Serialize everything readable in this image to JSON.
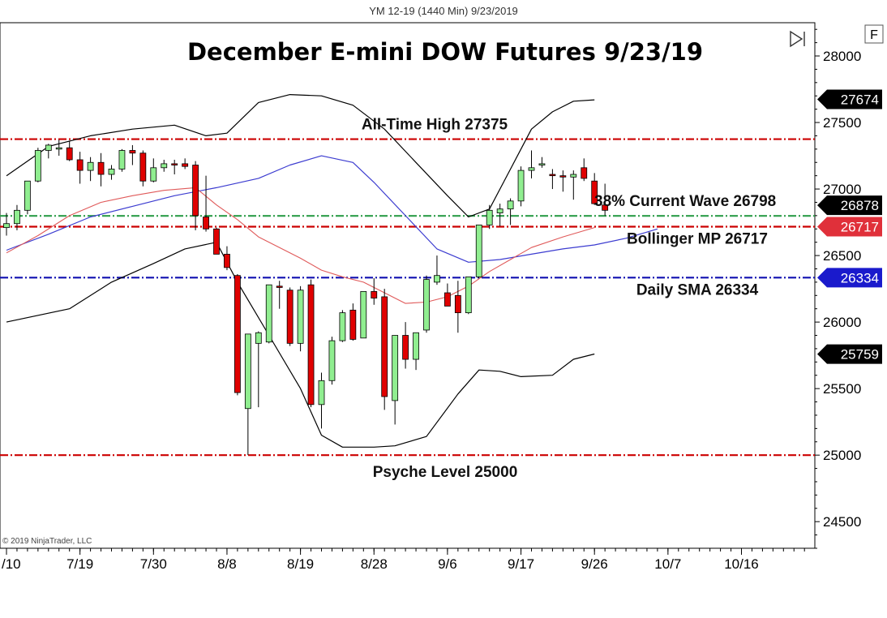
{
  "header": {
    "caption": "YM 12-19 (1440 Min)  9/23/2019"
  },
  "footer": {
    "copyright": "© 2019 NinjaTrader, LLC"
  },
  "panel": {
    "f_label": "F",
    "play_icon": "play-end-icon"
  },
  "colors": {
    "bull": "#90ee90",
    "bear": "#e00000",
    "wick": "#000000",
    "bollinger": "#000000",
    "keltner": "#3c3cd0",
    "ma": "#e05a5a",
    "red_dash": "#cc0000",
    "green_dash": "#2e9e4a",
    "blue_dash": "#1010b0",
    "badge_black": "#000000",
    "badge_red": "#e0303a",
    "badge_blue": "#1a1acc"
  },
  "chart_data": {
    "type": "candlestick",
    "title": "December E-mini DOW Futures 9/23/19",
    "ylim": [
      24300,
      28250
    ],
    "y_ticks": [
      {
        "value": 24500,
        "label": "24500"
      },
      {
        "value": 25000,
        "label": "25000"
      },
      {
        "value": 25500,
        "label": "25500"
      },
      {
        "value": 26000,
        "label": "26000"
      },
      {
        "value": 26500,
        "label": "26500"
      },
      {
        "value": 27000,
        "label": "27000"
      },
      {
        "value": 27500,
        "label": "27500"
      },
      {
        "value": 28000,
        "label": "28000"
      }
    ],
    "x_ticks": [
      {
        "index": 0,
        "label": "/10"
      },
      {
        "index": 7,
        "label": "7/19"
      },
      {
        "index": 14,
        "label": "7/30"
      },
      {
        "index": 21,
        "label": "8/8"
      },
      {
        "index": 28,
        "label": "8/19"
      },
      {
        "index": 35,
        "label": "8/28"
      },
      {
        "index": 42,
        "label": "9/6"
      },
      {
        "index": 49,
        "label": "9/17"
      },
      {
        "index": 56,
        "label": "9/26"
      },
      {
        "index": 63,
        "label": "10/7"
      },
      {
        "index": 70,
        "label": "10/16"
      }
    ],
    "candles": [
      {
        "o": 26710,
        "h": 26820,
        "l": 26650,
        "c": 26740
      },
      {
        "o": 26740,
        "h": 26880,
        "l": 26690,
        "c": 26840
      },
      {
        "o": 26840,
        "h": 27060,
        "l": 26810,
        "c": 27060
      },
      {
        "o": 27060,
        "h": 27310,
        "l": 27050,
        "c": 27290
      },
      {
        "o": 27290,
        "h": 27340,
        "l": 27230,
        "c": 27330
      },
      {
        "o": 27300,
        "h": 27370,
        "l": 27250,
        "c": 27310
      },
      {
        "o": 27310,
        "h": 27360,
        "l": 27210,
        "c": 27220
      },
      {
        "o": 27220,
        "h": 27280,
        "l": 27040,
        "c": 27140
      },
      {
        "o": 27140,
        "h": 27240,
        "l": 27060,
        "c": 27200
      },
      {
        "o": 27200,
        "h": 27270,
        "l": 27020,
        "c": 27110
      },
      {
        "o": 27110,
        "h": 27180,
        "l": 27070,
        "c": 27150
      },
      {
        "o": 27150,
        "h": 27300,
        "l": 27130,
        "c": 27290
      },
      {
        "o": 27290,
        "h": 27330,
        "l": 27180,
        "c": 27270
      },
      {
        "o": 27270,
        "h": 27290,
        "l": 27020,
        "c": 27060
      },
      {
        "o": 27060,
        "h": 27230,
        "l": 27050,
        "c": 27160
      },
      {
        "o": 27160,
        "h": 27220,
        "l": 27130,
        "c": 27190
      },
      {
        "o": 27190,
        "h": 27220,
        "l": 27110,
        "c": 27180
      },
      {
        "o": 27190,
        "h": 27230,
        "l": 27150,
        "c": 27170
      },
      {
        "o": 27180,
        "h": 27210,
        "l": 26690,
        "c": 26800
      },
      {
        "o": 26790,
        "h": 27100,
        "l": 26680,
        "c": 26700
      },
      {
        "o": 26700,
        "h": 26710,
        "l": 26530,
        "c": 26510
      },
      {
        "o": 26510,
        "h": 26570,
        "l": 26390,
        "c": 26410
      },
      {
        "o": 26350,
        "h": 26360,
        "l": 25450,
        "c": 25470
      },
      {
        "o": 25350,
        "h": 25910,
        "l": 25000,
        "c": 25910
      },
      {
        "o": 25840,
        "h": 25930,
        "l": 25360,
        "c": 25920
      },
      {
        "o": 25850,
        "h": 26280,
        "l": 25840,
        "c": 26280
      },
      {
        "o": 26270,
        "h": 26310,
        "l": 26100,
        "c": 26260
      },
      {
        "o": 26240,
        "h": 26260,
        "l": 25820,
        "c": 25840
      },
      {
        "o": 25840,
        "h": 26270,
        "l": 25780,
        "c": 26240
      },
      {
        "o": 26280,
        "h": 26320,
        "l": 25360,
        "c": 25380
      },
      {
        "o": 25380,
        "h": 25620,
        "l": 25200,
        "c": 25560
      },
      {
        "o": 25560,
        "h": 25890,
        "l": 25530,
        "c": 25860
      },
      {
        "o": 25860,
        "h": 26090,
        "l": 25850,
        "c": 26070
      },
      {
        "o": 26090,
        "h": 26140,
        "l": 25860,
        "c": 25870
      },
      {
        "o": 25880,
        "h": 26230,
        "l": 25880,
        "c": 26230
      },
      {
        "o": 26230,
        "h": 26330,
        "l": 26130,
        "c": 26180
      },
      {
        "o": 26190,
        "h": 26250,
        "l": 25340,
        "c": 25440
      },
      {
        "o": 25410,
        "h": 25900,
        "l": 25230,
        "c": 25900
      },
      {
        "o": 25900,
        "h": 26000,
        "l": 25650,
        "c": 25720
      },
      {
        "o": 25720,
        "h": 25920,
        "l": 25640,
        "c": 25920
      },
      {
        "o": 25940,
        "h": 26350,
        "l": 25920,
        "c": 26320
      },
      {
        "o": 26300,
        "h": 26500,
        "l": 26280,
        "c": 26350
      },
      {
        "o": 26220,
        "h": 26290,
        "l": 26140,
        "c": 26120
      },
      {
        "o": 26200,
        "h": 26310,
        "l": 25920,
        "c": 26070
      },
      {
        "o": 26070,
        "h": 26340,
        "l": 26060,
        "c": 26340
      },
      {
        "o": 26340,
        "h": 26730,
        "l": 26330,
        "c": 26730
      },
      {
        "o": 26730,
        "h": 26880,
        "l": 26700,
        "c": 26840
      },
      {
        "o": 26820,
        "h": 26890,
        "l": 26720,
        "c": 26850
      },
      {
        "o": 26850,
        "h": 26930,
        "l": 26730,
        "c": 26910
      },
      {
        "o": 26910,
        "h": 27170,
        "l": 26870,
        "c": 27140
      },
      {
        "o": 27140,
        "h": 27290,
        "l": 27080,
        "c": 27160
      },
      {
        "o": 27180,
        "h": 27240,
        "l": 27160,
        "c": 27190
      },
      {
        "o": 27110,
        "h": 27150,
        "l": 27000,
        "c": 27100
      },
      {
        "o": 27100,
        "h": 27140,
        "l": 26980,
        "c": 27090
      },
      {
        "o": 27090,
        "h": 27140,
        "l": 26920,
        "c": 27110
      },
      {
        "o": 27160,
        "h": 27230,
        "l": 27060,
        "c": 27080
      },
      {
        "o": 27060,
        "h": 27120,
        "l": 26880,
        "c": 26890
      },
      {
        "o": 26880,
        "h": 27040,
        "l": 26800,
        "c": 26840
      }
    ],
    "bollinger_upper": [
      [
        0,
        27100
      ],
      [
        4,
        27320
      ],
      [
        8,
        27400
      ],
      [
        12,
        27450
      ],
      [
        16,
        27480
      ],
      [
        19,
        27400
      ],
      [
        21,
        27420
      ],
      [
        24,
        27650
      ],
      [
        27,
        27710
      ],
      [
        30,
        27700
      ],
      [
        33,
        27630
      ],
      [
        36,
        27450
      ],
      [
        39,
        27200
      ],
      [
        42,
        26950
      ],
      [
        44,
        26790
      ],
      [
        46,
        26850
      ],
      [
        48,
        27150
      ],
      [
        50,
        27450
      ],
      [
        52,
        27580
      ],
      [
        54,
        27660
      ],
      [
        56,
        27670
      ]
    ],
    "bollinger_lower": [
      [
        0,
        26000
      ],
      [
        6,
        26100
      ],
      [
        10,
        26300
      ],
      [
        14,
        26440
      ],
      [
        17,
        26550
      ],
      [
        20,
        26600
      ],
      [
        22,
        26300
      ],
      [
        25,
        25900
      ],
      [
        28,
        25500
      ],
      [
        30,
        25150
      ],
      [
        32,
        25060
      ],
      [
        35,
        25060
      ],
      [
        37,
        25070
      ],
      [
        40,
        25140
      ],
      [
        43,
        25460
      ],
      [
        45,
        25640
      ],
      [
        47,
        25630
      ],
      [
        49,
        25590
      ],
      [
        52,
        25600
      ],
      [
        54,
        25720
      ],
      [
        56,
        25760
      ]
    ],
    "keltner_mid": [
      [
        0,
        26650
      ],
      [
        6,
        26920
      ],
      [
        10,
        27000
      ],
      [
        13,
        27080
      ],
      [
        16,
        27120
      ],
      [
        19,
        27140
      ],
      [
        22,
        27150
      ],
      [
        25,
        27210
      ],
      [
        28,
        27190
      ],
      [
        30,
        26940
      ],
      [
        32,
        26700
      ],
      [
        34,
        26300
      ],
      [
        36,
        25960
      ],
      [
        38,
        25950
      ],
      [
        40,
        25950
      ],
      [
        42,
        26000
      ],
      [
        44,
        25960
      ],
      [
        46,
        26000
      ],
      [
        48,
        26070
      ],
      [
        50,
        26150
      ],
      [
        53,
        26230
      ],
      [
        56,
        26300
      ]
    ],
    "keltner_lower_track": [
      [
        0,
        26540
      ],
      [
        4,
        26660
      ],
      [
        8,
        26790
      ],
      [
        12,
        26870
      ],
      [
        16,
        26950
      ],
      [
        20,
        27010
      ],
      [
        24,
        27080
      ],
      [
        27,
        27180
      ],
      [
        30,
        27250
      ],
      [
        33,
        27200
      ],
      [
        35,
        27050
      ],
      [
        38,
        26800
      ],
      [
        41,
        26550
      ],
      [
        44,
        26450
      ],
      [
        47,
        26470
      ],
      [
        50,
        26510
      ],
      [
        53,
        26550
      ],
      [
        56,
        26580
      ],
      [
        59,
        26630
      ],
      [
        62,
        26700
      ]
    ],
    "moving_average": [
      [
        0,
        26520
      ],
      [
        3,
        26650
      ],
      [
        6,
        26800
      ],
      [
        9,
        26900
      ],
      [
        12,
        26950
      ],
      [
        15,
        26990
      ],
      [
        18,
        27010
      ],
      [
        20,
        26880
      ],
      [
        22,
        26770
      ],
      [
        24,
        26640
      ],
      [
        26,
        26560
      ],
      [
        28,
        26480
      ],
      [
        30,
        26390
      ],
      [
        32,
        26340
      ],
      [
        34,
        26300
      ],
      [
        36,
        26220
      ],
      [
        38,
        26140
      ],
      [
        40,
        26150
      ],
      [
        42,
        26190
      ],
      [
        44,
        26270
      ],
      [
        46,
        26380
      ],
      [
        48,
        26470
      ],
      [
        50,
        26560
      ],
      [
        53,
        26640
      ],
      [
        56,
        26710
      ]
    ],
    "levels": [
      {
        "name": "All-Time High",
        "label": "All-Time High 27375",
        "value": 27375,
        "color_key": "red_dash"
      },
      {
        "name": "38% Current Wave",
        "label": "38% Current Wave 26798",
        "value": 26798,
        "color_key": "green_dash"
      },
      {
        "name": "Bollinger MP",
        "label": "Bollinger MP 26717",
        "value": 26717,
        "color_key": "red_dash"
      },
      {
        "name": "Daily SMA",
        "label": "Daily SMA 26334",
        "value": 26334,
        "color_key": "blue_dash"
      },
      {
        "name": "Psyche Level",
        "label": "Psyche Level 25000",
        "value": 25000,
        "color_key": "red_dash"
      }
    ],
    "price_badges": [
      {
        "value": 27674,
        "label": "27674",
        "color_key": "badge_black"
      },
      {
        "value": 26878,
        "label": "26878",
        "color_key": "badge_black"
      },
      {
        "value": 26717,
        "label": "26717",
        "color_key": "badge_red"
      },
      {
        "value": 26334,
        "label": "26334",
        "color_key": "badge_blue"
      },
      {
        "value": 25759,
        "label": "25759",
        "color_key": "badge_black"
      }
    ]
  }
}
